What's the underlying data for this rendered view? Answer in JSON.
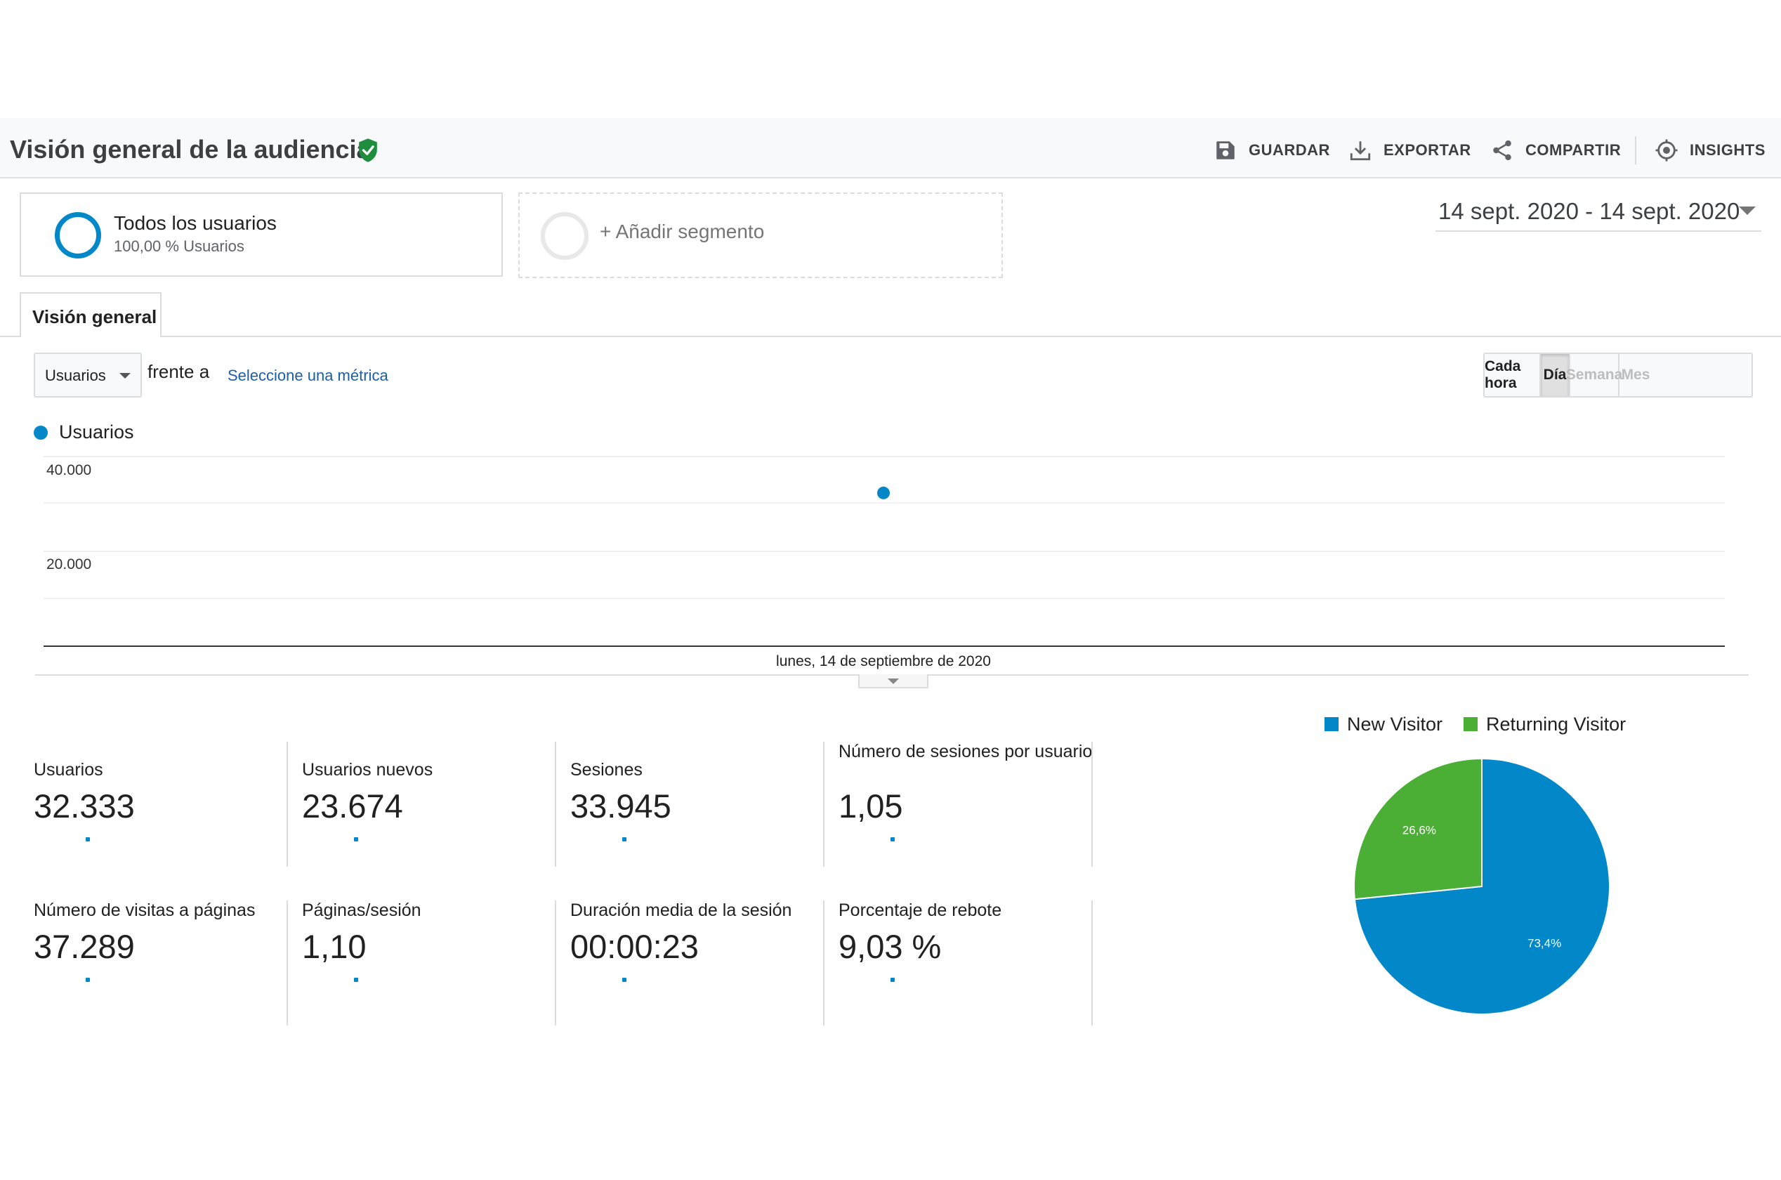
{
  "header": {
    "title": "Visión general de la audiencia",
    "actions": [
      {
        "label": "GUARDAR",
        "icon": "save-icon"
      },
      {
        "label": "EXPORTAR",
        "icon": "download-icon"
      },
      {
        "label": "COMPARTIR",
        "icon": "share-icon"
      },
      {
        "label": "INSIGHTS",
        "icon": "insights-icon"
      }
    ]
  },
  "segments": {
    "active": {
      "name": "Todos los usuarios",
      "sub": "100,00 % Usuarios"
    },
    "add_label": "+ Añadir segmento"
  },
  "date_range": "14 sept. 2020 - 14 sept. 2020",
  "tabs": [
    {
      "label": "Visión general",
      "active": true
    }
  ],
  "controls": {
    "metric": "Usuarios",
    "versus": "frente a",
    "select_metric": "Seleccione una métrica",
    "granularity": [
      {
        "label": "Cada hora",
        "state": "enabled"
      },
      {
        "label": "Día",
        "state": "selected"
      },
      {
        "label": "Semana",
        "state": "disabled"
      },
      {
        "label": "Mes",
        "state": "disabled"
      }
    ]
  },
  "colors": {
    "primary": "#0288c8",
    "returning": "#4caf35",
    "link": "#1a5fa8",
    "verified": "#1e8e3e"
  },
  "chart_data": [
    {
      "type": "line",
      "title": "",
      "series": [
        {
          "name": "Usuarios",
          "x": [
            "lunes, 14 de septiembre de 2020"
          ],
          "values": [
            32333
          ]
        }
      ],
      "y_ticks": [
        "40.000",
        "20.000"
      ],
      "ylim": [
        0,
        40000
      ],
      "x_label_text": "lunes, 14 de septiembre de 2020",
      "grid": true
    },
    {
      "type": "pie",
      "legend": [
        "New Visitor",
        "Returning Visitor"
      ],
      "slices": [
        {
          "name": "New Visitor",
          "value": 73.4,
          "label": "73,4%"
        },
        {
          "name": "Returning Visitor",
          "value": 26.6,
          "label": "26,6%"
        }
      ]
    }
  ],
  "metrics": [
    {
      "label": "Usuarios",
      "value": "32.333"
    },
    {
      "label": "Usuarios nuevos",
      "value": "23.674"
    },
    {
      "label": "Sesiones",
      "value": "33.945"
    },
    {
      "label": "Número de sesiones por usuario",
      "value": "1,05"
    },
    {
      "label": "Número de visitas a páginas",
      "value": "37.289"
    },
    {
      "label": "Páginas/sesión",
      "value": "1,10"
    },
    {
      "label": "Duración media de la sesión",
      "value": "00:00:23"
    },
    {
      "label": "Porcentaje de rebote",
      "value": "9,03 %"
    }
  ]
}
